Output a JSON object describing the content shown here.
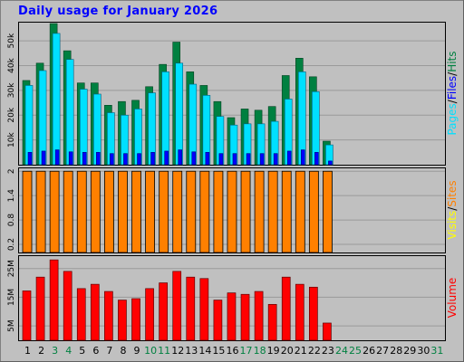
{
  "title": "Daily usage for January 2026",
  "colors": {
    "background": "#c0c0c0",
    "frame": "#000000",
    "title": "#0000ff",
    "hits": "#008040",
    "files": "#00e0ff",
    "pages": "#0000ff",
    "visits": "#ff8000",
    "sites": "#ffff00",
    "volume": "#ff0000",
    "weekend_label": "#008040"
  },
  "chart_data": [
    {
      "type": "bar",
      "panel": "hits-files-pages",
      "categories": [
        "1",
        "2",
        "3",
        "4",
        "5",
        "6",
        "7",
        "8",
        "9",
        "10",
        "11",
        "12",
        "13",
        "14",
        "15",
        "16",
        "17",
        "18",
        "19",
        "20",
        "21",
        "22",
        "23",
        "24",
        "25",
        "26",
        "27",
        "28",
        "29",
        "30",
        "31"
      ],
      "weekend_days": [
        "3",
        "4",
        "10",
        "11",
        "17",
        "18",
        "24",
        "25",
        "31"
      ],
      "ylabel_parts": [
        "Pages",
        "Files",
        "Hits"
      ],
      "yticks": [
        "10k",
        "20k",
        "30k",
        "40k",
        "50k"
      ],
      "ytick_values": [
        10000,
        20000,
        30000,
        40000,
        50000
      ],
      "ylim": [
        0,
        57000
      ],
      "series": [
        {
          "name": "Hits",
          "values": [
            34000,
            41000,
            57000,
            46000,
            33000,
            33000,
            24000,
            25500,
            26000,
            31500,
            40500,
            49500,
            37500,
            32000,
            25500,
            19000,
            22500,
            22000,
            23500,
            36000,
            43000,
            35500,
            9500,
            0,
            0,
            0,
            0,
            0,
            0,
            0,
            0
          ]
        },
        {
          "name": "Files",
          "values": [
            32000,
            38000,
            53000,
            42500,
            30500,
            28500,
            21000,
            20000,
            22500,
            29000,
            37500,
            41000,
            32500,
            28000,
            19500,
            16000,
            16500,
            16500,
            17500,
            26500,
            37500,
            29500,
            8000,
            0,
            0,
            0,
            0,
            0,
            0,
            0,
            0
          ]
        },
        {
          "name": "Pages",
          "values": [
            5000,
            5500,
            6000,
            5200,
            5000,
            5000,
            4500,
            4500,
            4500,
            5000,
            5500,
            6000,
            5200,
            5000,
            4500,
            4500,
            4500,
            4500,
            4500,
            5500,
            6000,
            5000,
            1500,
            0,
            0,
            0,
            0,
            0,
            0,
            0,
            0
          ]
        }
      ]
    },
    {
      "type": "bar",
      "panel": "visits-sites",
      "categories": [
        "1",
        "2",
        "3",
        "4",
        "5",
        "6",
        "7",
        "8",
        "9",
        "10",
        "11",
        "12",
        "13",
        "14",
        "15",
        "16",
        "17",
        "18",
        "19",
        "20",
        "21",
        "22",
        "23",
        "24",
        "25",
        "26",
        "27",
        "28",
        "29",
        "30",
        "31"
      ],
      "ylabel_parts": [
        "Visits",
        "Sites"
      ],
      "yticks": [
        "0.2",
        "0.8",
        "1.4",
        "2"
      ],
      "ytick_values": [
        0.2,
        0.8,
        1.4,
        2
      ],
      "ylim": [
        0,
        2.05
      ],
      "series": [
        {
          "name": "Visits",
          "values": [
            2,
            2,
            2,
            2,
            2,
            2,
            2,
            2,
            2,
            2,
            2,
            2,
            2,
            2,
            2,
            2,
            2,
            2,
            2,
            2,
            2,
            2,
            2,
            0,
            0,
            0,
            0,
            0,
            0,
            0,
            0
          ]
        },
        {
          "name": "Sites",
          "values": [
            2,
            2,
            2,
            2,
            2,
            2,
            2,
            2,
            2,
            2,
            2,
            2,
            2,
            2,
            2,
            2,
            2,
            2,
            2,
            2,
            2,
            2,
            2,
            0,
            0,
            0,
            0,
            0,
            0,
            0,
            0
          ]
        }
      ]
    },
    {
      "type": "bar",
      "panel": "volume",
      "categories": [
        "1",
        "2",
        "3",
        "4",
        "5",
        "6",
        "7",
        "8",
        "9",
        "10",
        "11",
        "12",
        "13",
        "14",
        "15",
        "16",
        "17",
        "18",
        "19",
        "20",
        "21",
        "22",
        "23",
        "24",
        "25",
        "26",
        "27",
        "28",
        "29",
        "30",
        "31"
      ],
      "ylabel_parts": [
        "Volume"
      ],
      "yticks": [
        "5M",
        "15M",
        "25M"
      ],
      "ytick_values": [
        5,
        15,
        25
      ],
      "ylim": [
        0,
        29
      ],
      "series": [
        {
          "name": "Volume",
          "values": [
            17.2,
            22,
            28,
            24,
            18,
            19.5,
            17,
            14,
            14.5,
            18,
            20,
            24,
            22,
            21.5,
            14,
            16.5,
            16,
            17,
            12.5,
            22,
            19.5,
            18.5,
            6,
            0,
            0,
            0,
            0,
            0,
            0,
            0,
            0
          ]
        }
      ]
    }
  ]
}
